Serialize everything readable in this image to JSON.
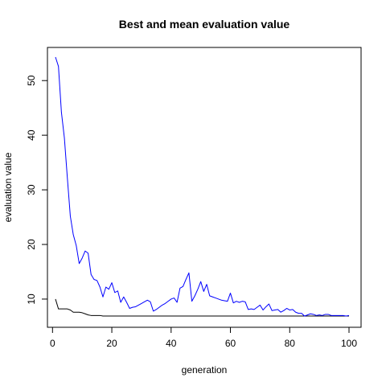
{
  "chart_data": {
    "type": "line",
    "title": "Best and mean evaluation value",
    "xlabel": "generation",
    "ylabel": "evaluation value",
    "xlim": [
      1,
      100
    ],
    "ylim": [
      6.9,
      54.3
    ],
    "x_ticks": [
      0,
      20,
      40,
      60,
      80,
      100
    ],
    "y_ticks": [
      10,
      20,
      30,
      40,
      50
    ],
    "grid": false,
    "legend": "none",
    "series": [
      {
        "color": "#0000ff",
        "values": [
          54.3,
          52.6,
          44.2,
          39.5,
          32.2,
          25.2,
          21.8,
          19.8,
          16.5,
          17.5,
          18.8,
          18.4,
          14.5,
          13.6,
          13.4,
          12.2,
          10.4,
          12.2,
          11.8,
          13.0,
          11.2,
          11.5,
          9.4,
          10.4,
          9.4,
          8.3,
          8.5,
          8.6,
          8.9,
          9.2,
          9.5,
          9.8,
          9.5,
          7.8,
          8.1,
          8.5,
          8.9,
          9.2,
          9.6,
          10.0,
          10.2,
          9.4,
          12.0,
          12.3,
          13.6,
          14.8,
          9.6,
          10.6,
          11.8,
          13.2,
          11.4,
          12.7,
          10.6,
          10.4,
          10.2,
          10.0,
          9.8,
          9.7,
          9.6,
          11.1,
          9.3,
          9.6,
          9.4,
          9.6,
          9.5,
          8.1,
          8.2,
          8.1,
          8.5,
          8.9,
          8.0,
          8.6,
          9.1,
          7.9,
          8.0,
          8.1,
          7.6,
          7.9,
          8.3,
          8.0,
          8.1,
          7.6,
          7.4,
          7.4,
          6.9,
          7.1,
          7.3,
          7.2,
          7.0,
          7.1,
          7.0,
          7.2,
          7.2,
          7.0,
          7.0,
          7.0,
          7.0,
          7.0,
          6.9,
          7.0
        ]
      },
      {
        "color": "#000000",
        "values": [
          10.0,
          8.2,
          8.2,
          8.2,
          8.2,
          8.0,
          7.6,
          7.6,
          7.6,
          7.5,
          7.3,
          7.1,
          7.0,
          7.0,
          7.0,
          7.0,
          6.9,
          6.9,
          6.9,
          6.9,
          6.9,
          6.9,
          6.9,
          6.9,
          6.9,
          6.9,
          6.9,
          6.9,
          6.9,
          6.9,
          6.9,
          6.9,
          6.9,
          6.9,
          6.9,
          6.9,
          6.9,
          6.9,
          6.9,
          6.9,
          6.9,
          6.9,
          6.9,
          6.9,
          6.9,
          6.9,
          6.9,
          6.9,
          6.9,
          6.9,
          6.9,
          6.9,
          6.9,
          6.9,
          6.9,
          6.9,
          6.9,
          6.9,
          6.9,
          6.9,
          6.9,
          6.9,
          6.9,
          6.9,
          6.9,
          6.9,
          6.9,
          6.9,
          6.9,
          6.9,
          6.9,
          6.9,
          6.9,
          6.9,
          6.9,
          6.9,
          6.9,
          6.9,
          6.9,
          6.9,
          6.9,
          6.9,
          6.9,
          6.9,
          6.9,
          6.9,
          6.9,
          6.9,
          6.9,
          6.9,
          6.9,
          6.9,
          6.9,
          6.9,
          6.9,
          6.9,
          6.9,
          6.9,
          6.9,
          6.9
        ]
      }
    ]
  }
}
